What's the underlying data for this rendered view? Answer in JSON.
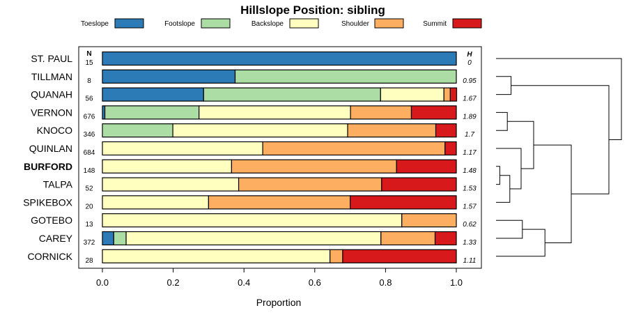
{
  "chart_data": {
    "type": "bar",
    "orientation": "horizontal",
    "stacked": true,
    "title": "Hillslope Position: sibling",
    "xlabel": "Proportion",
    "xlim": [
      0,
      1
    ],
    "xticks": [
      0.0,
      0.2,
      0.4,
      0.6,
      0.8,
      1.0
    ],
    "xtick_labels": [
      "0.0",
      "0.2",
      "0.4",
      "0.6",
      "0.8",
      "1.0"
    ],
    "n_header": "N",
    "h_header": "H",
    "legend_position": "top",
    "series": [
      {
        "name": "Toeslope",
        "color": "#2C7BB6"
      },
      {
        "name": "Footslope",
        "color": "#ABDDA4"
      },
      {
        "name": "Backslope",
        "color": "#FFFFBF"
      },
      {
        "name": "Shoulder",
        "color": "#FDAE61"
      },
      {
        "name": "Summit",
        "color": "#D7191C"
      }
    ],
    "rows": [
      {
        "label": "ST. PAUL",
        "bold": false,
        "n": "15",
        "h": "0",
        "values": [
          1.0,
          0,
          0,
          0,
          0
        ]
      },
      {
        "label": "TILLMAN",
        "bold": false,
        "n": "8",
        "h": "0.95",
        "values": [
          0.375,
          0.625,
          0,
          0,
          0
        ]
      },
      {
        "label": "QUANAH",
        "bold": false,
        "n": "56",
        "h": "1.67",
        "values": [
          0.286,
          0.5,
          0.179,
          0.018,
          0.018
        ]
      },
      {
        "label": "VERNON",
        "bold": false,
        "n": "676",
        "h": "1.89",
        "values": [
          0.007,
          0.266,
          0.428,
          0.172,
          0.127
        ]
      },
      {
        "label": "KNOCO",
        "bold": false,
        "n": "346",
        "h": "1.7",
        "values": [
          0,
          0.199,
          0.494,
          0.249,
          0.058
        ]
      },
      {
        "label": "QUINLAN",
        "bold": false,
        "n": "684",
        "h": "1.17",
        "values": [
          0,
          0,
          0.453,
          0.515,
          0.032
        ]
      },
      {
        "label": "BURFORD",
        "bold": true,
        "n": "148",
        "h": "1.48",
        "values": [
          0,
          0,
          0.365,
          0.466,
          0.169
        ]
      },
      {
        "label": "TALPA",
        "bold": false,
        "n": "52",
        "h": "1.53",
        "values": [
          0,
          0,
          0.385,
          0.404,
          0.211
        ]
      },
      {
        "label": "SPIKEBOX",
        "bold": false,
        "n": "20",
        "h": "1.57",
        "values": [
          0,
          0,
          0.3,
          0.4,
          0.3
        ]
      },
      {
        "label": "GOTEBO",
        "bold": false,
        "n": "13",
        "h": "0.62",
        "values": [
          0,
          0,
          0.846,
          0.154,
          0
        ]
      },
      {
        "label": "CAREY",
        "bold": false,
        "n": "372",
        "h": "1.33",
        "values": [
          0.032,
          0.035,
          0.72,
          0.153,
          0.06
        ]
      },
      {
        "label": "CORNICK",
        "bold": false,
        "n": "28",
        "h": "1.11",
        "values": [
          0,
          0,
          0.643,
          0.036,
          0.321
        ]
      }
    ],
    "dendrogram": {
      "description": "hierarchical clustering of rows (row indices, 0 = top)",
      "merges": [
        {
          "id": "m1",
          "a": 1,
          "b": 2,
          "height": 0.12
        },
        {
          "id": "m2",
          "a": 3,
          "b": 4,
          "height": 0.09
        },
        {
          "id": "m3",
          "a": 6,
          "b": 7,
          "height": 0.03
        },
        {
          "id": "m4",
          "a": "m3",
          "b": 8,
          "height": 0.11
        },
        {
          "id": "m5",
          "a": 5,
          "b": "m4",
          "height": 0.2
        },
        {
          "id": "m6",
          "a": "m2",
          "b": "m5",
          "height": 0.3
        },
        {
          "id": "m7",
          "a": 9,
          "b": 10,
          "height": 0.21
        },
        {
          "id": "m8",
          "a": "m7",
          "b": 11,
          "height": 0.39
        },
        {
          "id": "m9",
          "a": "m6",
          "b": "m8",
          "height": 0.6
        },
        {
          "id": "m10",
          "a": "m1",
          "b": "m9",
          "height": 0.9
        },
        {
          "id": "m11",
          "a": 0,
          "b": "m10",
          "height": 1.0
        }
      ]
    }
  }
}
